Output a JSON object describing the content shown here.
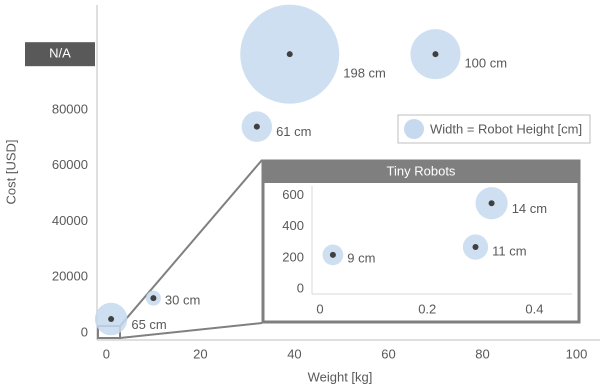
{
  "chart_data": [
    {
      "type": "bubble",
      "x_label": "Weight [kg]",
      "y_label": "Cost [USD]",
      "xlim": [
        -2,
        105
      ],
      "ylim": [
        0,
        118000
      ],
      "xticks": [
        0,
        20,
        40,
        60,
        80,
        100
      ],
      "yticks": [
        0,
        20000,
        40000,
        60000,
        80000,
        {
          "value": 100000,
          "label": "N/A"
        }
      ],
      "series": [
        {
          "name": "Width = Robot Height [cm]",
          "color": "#c6d9ef",
          "x": [
            39,
            70,
            32,
            10,
            1
          ],
          "values": [
            100000,
            100000,
            74000,
            12500,
            5000
          ],
          "sizes": [
            198,
            100,
            61,
            30,
            65
          ],
          "value_labels": [
            "198 cm",
            "100 cm",
            "61 cm",
            "30 cm",
            "65 cm"
          ]
        }
      ]
    },
    {
      "type": "bubble",
      "title": "Tiny Robots",
      "xlim": [
        -0.015,
        0.47
      ],
      "ylim": [
        -30,
        660
      ],
      "xticks": [
        0,
        0.2,
        0.4
      ],
      "yticks": [
        0,
        200,
        400,
        600
      ],
      "series": [
        {
          "color": "#c6d9ef",
          "x": [
            0.024,
            0.32,
            0.29
          ],
          "values": [
            220,
            550,
            270
          ],
          "sizes": [
            9,
            14,
            11
          ],
          "value_labels": [
            "9 cm",
            "14 cm",
            "11 cm"
          ]
        }
      ]
    }
  ]
}
